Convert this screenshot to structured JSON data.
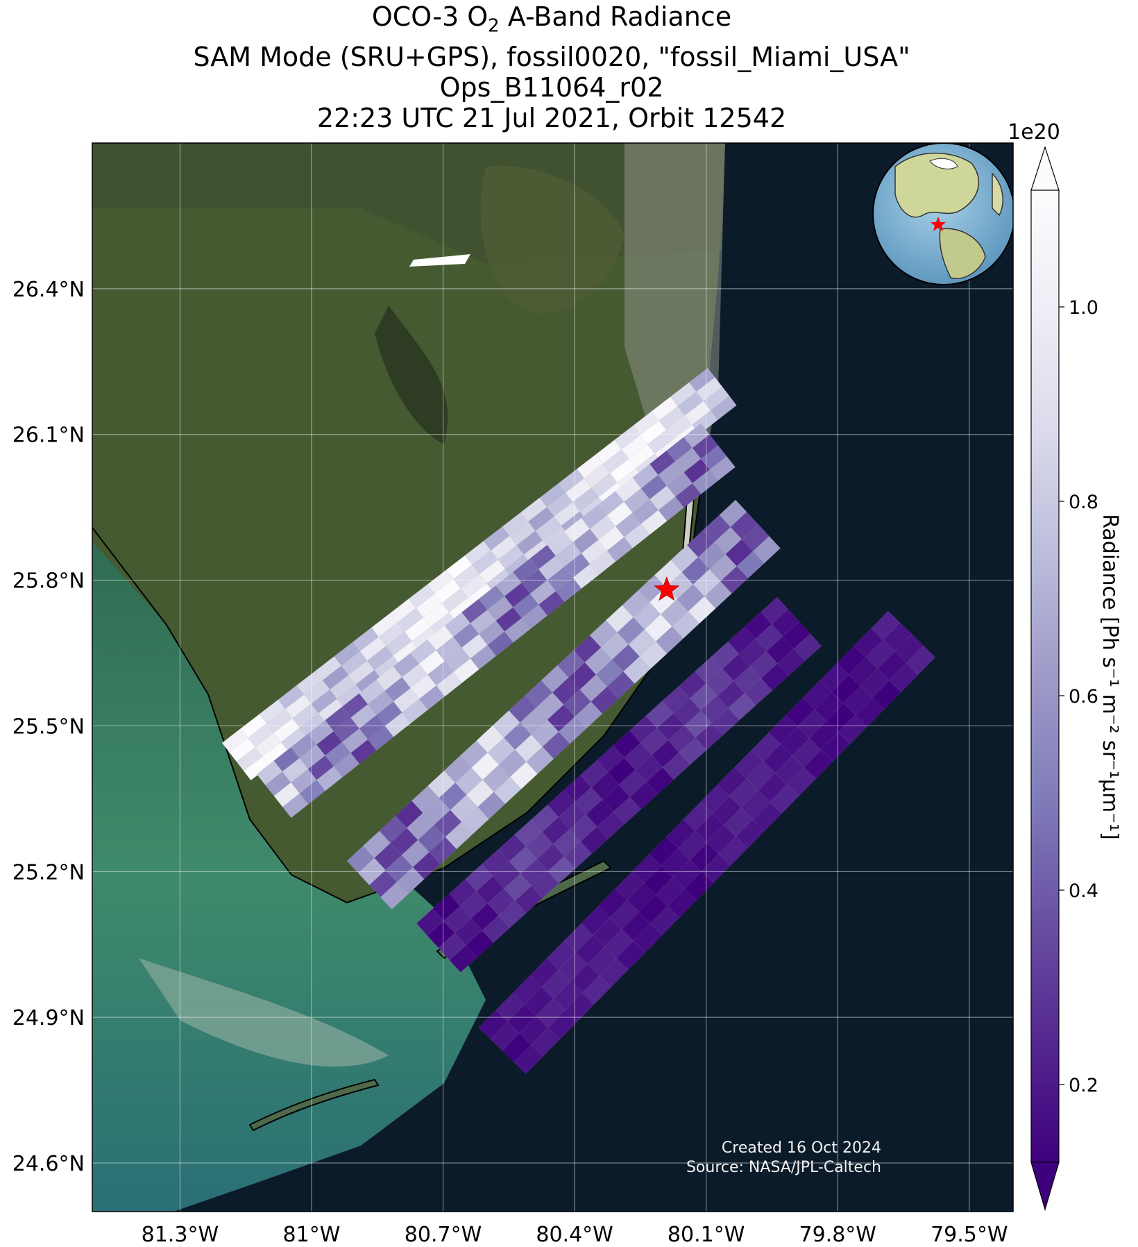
{
  "title": {
    "line1_pre": "OCO-3 O",
    "line1_sub": "2",
    "line1_post": " A-Band Radiance",
    "line2": "SAM Mode (SRU+GPS), fossil0020, \"fossil_Miami_USA\"",
    "line3": "Ops_B11064_r02",
    "line4": "22:23 UTC 21 Jul 2021, Orbit 12542"
  },
  "map": {
    "lon_range": [
      -81.5,
      -79.4
    ],
    "lat_range": [
      24.5,
      26.7
    ],
    "lon_ticks": [
      {
        "value": -81.3,
        "label": "81.3°W"
      },
      {
        "value": -81.0,
        "label": "81°W"
      },
      {
        "value": -80.7,
        "label": "80.7°W"
      },
      {
        "value": -80.4,
        "label": "80.4°W"
      },
      {
        "value": -80.1,
        "label": "80.1°W"
      },
      {
        "value": -79.8,
        "label": "79.8°W"
      },
      {
        "value": -79.5,
        "label": "79.5°W"
      }
    ],
    "lat_ticks": [
      {
        "value": 26.4,
        "label": "26.4°N"
      },
      {
        "value": 26.1,
        "label": "26.1°N"
      },
      {
        "value": 25.8,
        "label": "25.8°N"
      },
      {
        "value": 25.5,
        "label": "25.5°N"
      },
      {
        "value": 25.2,
        "label": "25.2°N"
      },
      {
        "value": 24.9,
        "label": "24.9°N"
      },
      {
        "value": 24.6,
        "label": "24.6°N"
      }
    ],
    "target_marker": {
      "lon": -80.19,
      "lat": 25.78,
      "color": "#ff0000"
    }
  },
  "colorbar": {
    "label": "Radiance [Ph s⁻¹ m⁻² sr⁻¹μm⁻¹]",
    "multiplier": "1e20",
    "range": [
      0.12,
      1.12
    ],
    "ticks": [
      {
        "value": 0.2,
        "label": "0.2"
      },
      {
        "value": 0.4,
        "label": "0.4"
      },
      {
        "value": 0.6,
        "label": "0.6"
      },
      {
        "value": 0.8,
        "label": "0.8"
      },
      {
        "value": 1.0,
        "label": "1.0"
      }
    ],
    "colors": [
      "#3f007d",
      "#54278f",
      "#6a51a3",
      "#807dba",
      "#9e9ac8",
      "#bcbddc",
      "#dadaeb",
      "#efedf5",
      "#fcfbfd"
    ]
  },
  "credit": {
    "created": "Created 16 Oct 2024",
    "source": "Source: NASA/JPL-Caltech"
  }
}
